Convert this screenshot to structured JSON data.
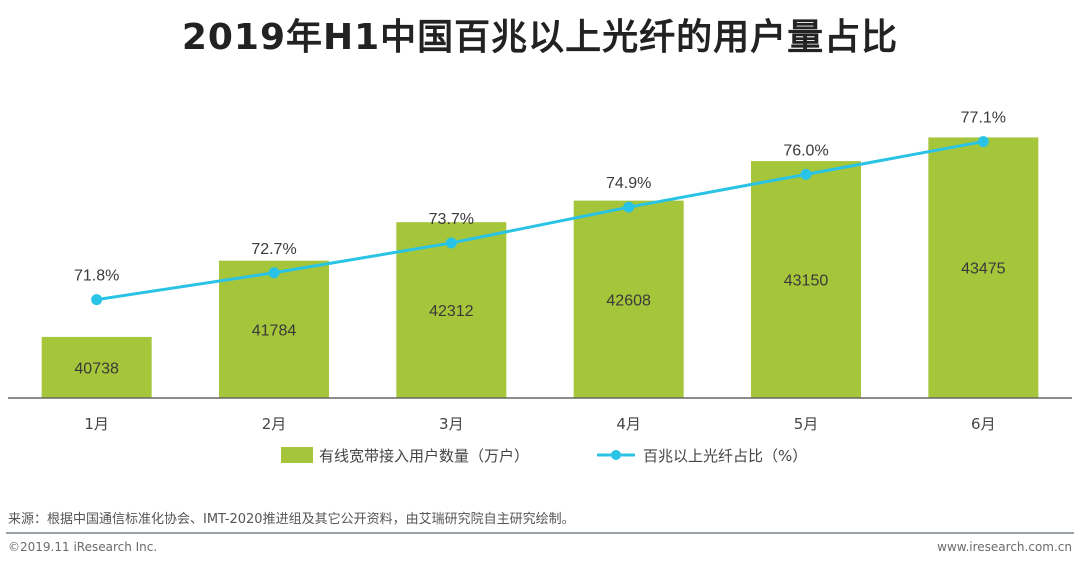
{
  "chart_data": {
    "type": "bar",
    "title": "2019年H1中国百兆以上光纤的用户量占比",
    "categories": [
      "1月",
      "2月",
      "3月",
      "4月",
      "5月",
      "6月"
    ],
    "series": [
      {
        "name": "有线宽带接入用户数量（万户）",
        "kind": "bar",
        "values": [
          40738,
          41784,
          42312,
          42608,
          43150,
          43475
        ],
        "labels": [
          "40738",
          "41784",
          "42312",
          "42608",
          "43150",
          "43475"
        ],
        "color": "#a5c53a"
      },
      {
        "name": "百兆以上光纤占比（%）",
        "kind": "line",
        "values": [
          71.8,
          72.7,
          73.7,
          74.9,
          76.0,
          77.1
        ],
        "labels": [
          "71.8%",
          "72.7%",
          "73.7%",
          "74.9%",
          "76.0%",
          "77.1%"
        ],
        "color": "#29c3e6"
      }
    ],
    "bar_axis_range": [
      39900,
      44400
    ],
    "line_axis_range": [
      68.5,
      79.5
    ],
    "legend_position": "bottom-center",
    "grid": false
  },
  "footer": {
    "source": "来源：根据中国通信标准化协会、IMT-2020推进组及其它公开资料，由艾瑞研究院自主研究绘制。",
    "copyright": "©2019.11 iResearch Inc.",
    "website": "www.iresearch.com.cn"
  },
  "colors": {
    "axis": "#666666",
    "text": "#444444"
  }
}
